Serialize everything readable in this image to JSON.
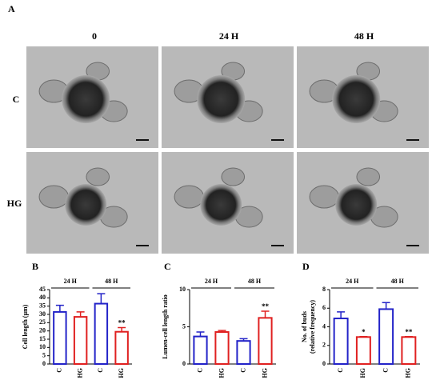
{
  "panel_labels": [
    "A",
    "B",
    "C",
    "D"
  ],
  "image_grid": {
    "columns": [
      "0",
      "24 H",
      "48 H"
    ],
    "rows": [
      "C",
      "HG"
    ]
  },
  "chart_data": [
    {
      "type": "bar",
      "y_label": "Cell length (μm)",
      "categories": [
        "C",
        "HG",
        "C",
        "HG"
      ],
      "values": [
        31.5,
        28.5,
        36.5,
        19.5
      ],
      "errors": [
        4,
        3,
        6,
        2.5
      ],
      "colors": [
        "#2323c8",
        "#e02020",
        "#2323c8",
        "#e02020"
      ],
      "groups": [
        "24 H",
        "48 H"
      ],
      "significance": [
        null,
        null,
        null,
        "**"
      ],
      "ylim": [
        0,
        45
      ],
      "yticks": [
        0,
        5,
        10,
        15,
        20,
        25,
        30,
        35,
        40,
        45
      ]
    },
    {
      "type": "bar",
      "y_label": "Lumen-cell length ratio",
      "categories": [
        "C",
        "HG",
        "C",
        "HG"
      ],
      "values": [
        3.7,
        4.3,
        3.1,
        6.2
      ],
      "errors": [
        0.6,
        0.2,
        0.3,
        0.9
      ],
      "colors": [
        "#2323c8",
        "#e02020",
        "#2323c8",
        "#e02020"
      ],
      "groups": [
        "24 H",
        "48 H"
      ],
      "significance": [
        null,
        null,
        null,
        "**"
      ],
      "ylim": [
        0,
        10
      ],
      "yticks": [
        0,
        5,
        10
      ]
    },
    {
      "type": "bar",
      "y_label": [
        "No. of buds",
        "(relative frequency)"
      ],
      "categories": [
        "C",
        "HG",
        "C",
        "HG"
      ],
      "values": [
        4.9,
        2.9,
        5.9,
        2.9
      ],
      "errors": [
        0.7,
        0.05,
        0.7,
        0.05
      ],
      "colors": [
        "#2323c8",
        "#e02020",
        "#2323c8",
        "#e02020"
      ],
      "groups": [
        "24 H",
        "48 H"
      ],
      "significance": [
        null,
        "*",
        null,
        "**"
      ],
      "ylim": [
        0,
        8
      ],
      "yticks": [
        0,
        2,
        4,
        6,
        8
      ]
    }
  ]
}
